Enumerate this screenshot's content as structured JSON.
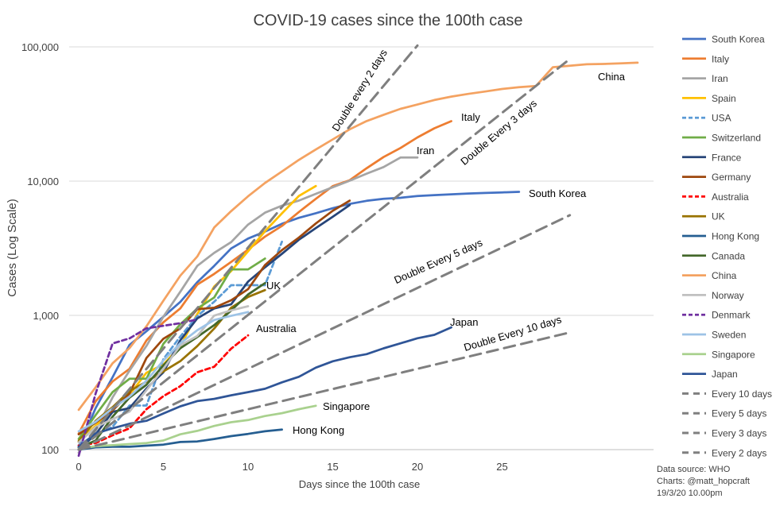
{
  "chart_data": {
    "type": "line",
    "title": "COVID-19 cases since the 100th case",
    "xlabel": "Days since the 100th case",
    "ylabel": "Cases (Log Scale)",
    "y_scale": "log",
    "xlim": [
      0,
      33
    ],
    "ylim": [
      100,
      100000
    ],
    "x_ticks": [
      0,
      5,
      10,
      15,
      20,
      25
    ],
    "y_ticks": [
      100,
      1000,
      10000,
      100000
    ],
    "y_tick_labels": [
      "100",
      "1,000",
      "10,000",
      "100,000"
    ],
    "grid": "horizontal",
    "legend_position": "right",
    "series": [
      {
        "name": "South Korea",
        "color": "#4472c4",
        "style": "solid",
        "label": "South Korea",
        "x": [
          0,
          1,
          2,
          3,
          4,
          5,
          6,
          7,
          8,
          9,
          10,
          11,
          12,
          13,
          14,
          15,
          16,
          17,
          18,
          19,
          20,
          21,
          22,
          23,
          24,
          25,
          26
        ],
        "y": [
          104,
          204,
          346,
          602,
          763,
          977,
          1261,
          1766,
          2337,
          3150,
          3736,
          4212,
          4812,
          5328,
          5766,
          6284,
          6767,
          7134,
          7382,
          7513,
          7755,
          7869,
          7979,
          8086,
          8162,
          8236,
          8320
        ]
      },
      {
        "name": "Italy",
        "color": "#ed7d31",
        "style": "solid",
        "label": "Italy",
        "x": [
          0,
          1,
          2,
          3,
          4,
          5,
          6,
          7,
          8,
          9,
          10,
          11,
          12,
          13,
          14,
          15,
          16,
          17,
          18,
          19,
          20,
          21,
          22
        ],
        "y": [
          132,
          229,
          322,
          400,
          650,
          888,
          1128,
          1694,
          2036,
          2502,
          3089,
          3858,
          4636,
          5883,
          7375,
          9172,
          10149,
          12462,
          15113,
          17660,
          21157,
          24747,
          27980
        ]
      },
      {
        "name": "Iran",
        "color": "#a5a5a5",
        "style": "solid",
        "label": "Iran",
        "x": [
          0,
          1,
          2,
          3,
          4,
          5,
          6,
          7,
          8,
          9,
          10,
          11,
          12,
          13,
          14,
          15,
          16,
          17,
          18,
          19,
          20
        ],
        "y": [
          95,
          139,
          245,
          388,
          593,
          978,
          1501,
          2336,
          2922,
          3513,
          4747,
          5823,
          6566,
          7161,
          8042,
          9000,
          10075,
          11364,
          12729,
          14991,
          14991
        ]
      },
      {
        "name": "Spain",
        "color": "#ffc000",
        "style": "solid",
        "label": "",
        "x": [
          0,
          1,
          2,
          3,
          4,
          5,
          6,
          7,
          8,
          9,
          10,
          11,
          12,
          13,
          14
        ],
        "y": [
          114,
          151,
          198,
          257,
          374,
          430,
          589,
          1024,
          1639,
          2140,
          3004,
          4231,
          5753,
          7753,
          9191
        ]
      },
      {
        "name": "USA",
        "color": "#5b9bd5",
        "style": "dashed",
        "label": "",
        "x": [
          0,
          1,
          2,
          3,
          4,
          5,
          6,
          7,
          8,
          9,
          10,
          11,
          12
        ],
        "y": [
          108,
          129,
          148,
          213,
          213,
          472,
          696,
          987,
          1264,
          1678,
          1678,
          1678,
          3536
        ]
      },
      {
        "name": "Switzerland",
        "color": "#70ad47",
        "style": "solid",
        "label": "",
        "x": [
          0,
          1,
          2,
          3,
          4,
          5,
          6,
          7,
          8,
          9,
          10,
          11
        ],
        "y": [
          120,
          181,
          268,
          337,
          337,
          614,
          858,
          1125,
          1359,
          2200,
          2200,
          2650
        ]
      },
      {
        "name": "France",
        "color": "#264478",
        "style": "solid",
        "label": "",
        "x": [
          0,
          1,
          2,
          3,
          4,
          5,
          6,
          7,
          8,
          9,
          10,
          11,
          12,
          13,
          14,
          15,
          16
        ],
        "y": [
          100,
          130,
          191,
          204,
          285,
          377,
          653,
          949,
          1126,
          1209,
          1784,
          2281,
          2876,
          3661,
          4469,
          5423,
          6633
        ]
      },
      {
        "name": "Germany",
        "color": "#9e480e",
        "style": "solid",
        "label": "",
        "x": [
          0,
          1,
          2,
          3,
          4,
          5,
          6,
          7,
          8,
          9,
          10,
          11,
          12,
          13,
          14,
          15,
          16
        ],
        "y": [
          130,
          159,
          196,
          262,
          482,
          670,
          799,
          1112,
          1139,
          1296,
          1567,
          2369,
          3062,
          3795,
          4838,
          6012,
          7156
        ]
      },
      {
        "name": "Australia",
        "color": "#ff0000",
        "style": "dashed",
        "label": "Australia",
        "x": [
          0,
          1,
          2,
          3,
          4,
          5,
          6,
          7,
          8,
          9,
          10
        ],
        "y": [
          107,
          112,
          128,
          144,
          200,
          250,
          297,
          377,
          414,
          565,
          709
        ]
      },
      {
        "name": "UK",
        "color": "#997300",
        "style": "solid",
        "label": "UK",
        "x": [
          0,
          1,
          2,
          3,
          4,
          5,
          6,
          7,
          8,
          9,
          10,
          11
        ],
        "y": [
          116,
          164,
          207,
          273,
          321,
          382,
          456,
          590,
          798,
          1140,
          1372,
          1543
        ]
      },
      {
        "name": "Hong Kong",
        "color": "#255e91",
        "style": "solid",
        "label": "Hong Kong",
        "x": [
          0,
          1,
          2,
          3,
          4,
          5,
          6,
          7,
          8,
          9,
          10,
          11,
          12
        ],
        "y": [
          100,
          104,
          105,
          105,
          107,
          109,
          114,
          115,
          120,
          126,
          131,
          137,
          141
        ]
      },
      {
        "name": "Canada",
        "color": "#43682b",
        "style": "solid",
        "label": "",
        "x": [
          0,
          1,
          2,
          3,
          4,
          5,
          6,
          7,
          8,
          9,
          10,
          11
        ],
        "y": [
          103,
          117,
          176,
          244,
          304,
          424,
          569,
          690,
          846,
          1087,
          1430,
          1739
        ]
      },
      {
        "name": "China",
        "color": "#f4a261",
        "style": "solid",
        "label": "China",
        "x": [
          0,
          1,
          2,
          3,
          4,
          5,
          6,
          7,
          8,
          9,
          10,
          11,
          12,
          13,
          14,
          15,
          16,
          17,
          18,
          19,
          20,
          21,
          22,
          23,
          24,
          25,
          26,
          27,
          28,
          29,
          30,
          31,
          32,
          33
        ],
        "y": [
          198,
          291,
          440,
          571,
          830,
          1287,
          1975,
          2744,
          4515,
          5974,
          7711,
          9692,
          11791,
          14380,
          17205,
          20438,
          24324,
          28018,
          31161,
          34546,
          37198,
          40171,
          42638,
          44653,
          46472,
          48548,
          50054,
          51174,
          70548,
          72436,
          74185,
          74576,
          75465,
          76288
        ]
      },
      {
        "name": "Norway",
        "color": "#c0c0c0",
        "style": "solid",
        "label": "",
        "x": [
          0,
          1,
          2,
          3,
          4,
          5,
          6,
          7,
          8,
          9,
          10
        ],
        "y": [
          113,
          147,
          169,
          192,
          277,
          400,
          598,
          702,
          996,
          1090,
          1169
        ]
      },
      {
        "name": "Denmark",
        "color": "#7030a0",
        "style": "dashed",
        "label": "",
        "x": [
          0,
          1,
          2,
          3,
          4,
          5,
          6,
          7
        ],
        "y": [
          90,
          262,
          617,
          674,
          801,
          836,
          875,
          933
        ]
      },
      {
        "name": "Sweden",
        "color": "#9dc3e6",
        "style": "solid",
        "label": "",
        "x": [
          0,
          1,
          2,
          3,
          4,
          5,
          6,
          7,
          8,
          9,
          10
        ],
        "y": [
          137,
          161,
          203,
          248,
          326,
          461,
          620,
          775,
          924,
          992,
          1059
        ]
      },
      {
        "name": "Singapore",
        "color": "#a9d18e",
        "style": "solid",
        "label": "Singapore",
        "x": [
          0,
          1,
          2,
          3,
          4,
          5,
          6,
          7,
          8,
          9,
          10,
          11,
          12,
          13,
          14
        ],
        "y": [
          102,
          106,
          108,
          110,
          112,
          117,
          130,
          138,
          150,
          160,
          166,
          178,
          187,
          200,
          212
        ]
      },
      {
        "name": "Japan",
        "color": "#2f5597",
        "style": "solid",
        "label": "Japan",
        "x": [
          0,
          1,
          2,
          3,
          4,
          5,
          6,
          7,
          8,
          9,
          10,
          11,
          12,
          13,
          14,
          15,
          16,
          17,
          18,
          19,
          20,
          21,
          22
        ],
        "y": [
          105,
          132,
          144,
          156,
          164,
          186,
          210,
          230,
          239,
          254,
          268,
          284,
          317,
          349,
          408,
          455,
          488,
          514,
          568,
          619,
          675,
          716,
          814
        ]
      },
      {
        "name": "Every 10 days",
        "color": "#7f7f7f",
        "style": "dashed",
        "label": "Double Every 10 days",
        "x": [
          0,
          29
        ],
        "y": [
          100,
          746
        ]
      },
      {
        "name": "Every 5 days",
        "color": "#7f7f7f",
        "style": "dashed",
        "label": "Double Every 5 days",
        "x": [
          0,
          29
        ],
        "y": [
          100,
          5572
        ]
      },
      {
        "name": "Every 3 days",
        "color": "#7f7f7f",
        "style": "dashed",
        "label": "Double Every 3 days",
        "x": [
          0,
          29
        ],
        "y": [
          100,
          81275
        ]
      },
      {
        "name": "Every 2 days",
        "color": "#7f7f7f",
        "style": "dashed",
        "label": "Double every 2 days",
        "x": [
          0,
          20
        ],
        "y": [
          100,
          102400
        ]
      }
    ],
    "footnote": [
      "Data source: WHO",
      "Charts: @matt_hopcraft",
      "19/3/20 10.00pm"
    ]
  }
}
